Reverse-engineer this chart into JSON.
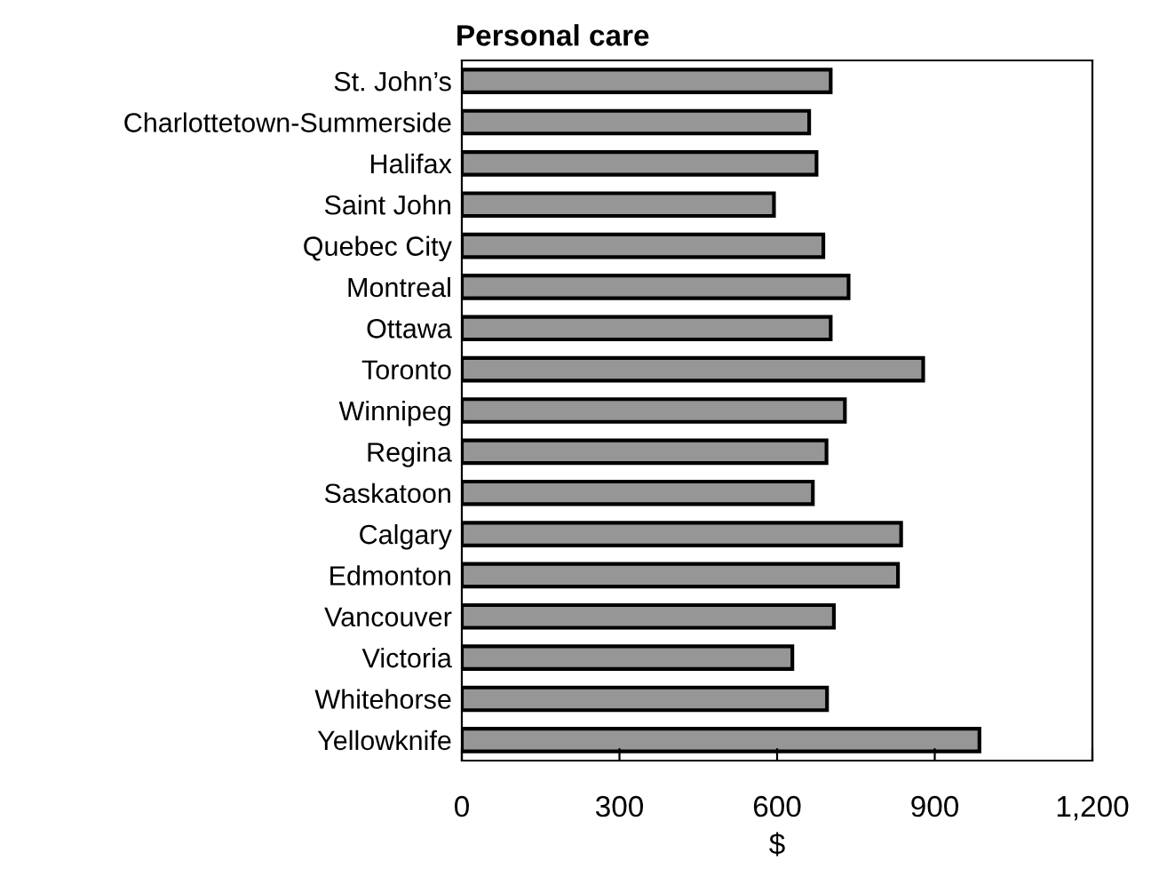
{
  "chart_data": {
    "type": "bar",
    "orientation": "horizontal",
    "title": "Personal care",
    "xlabel": "$",
    "categories": [
      "St. John’s",
      "Charlottetown-Summerside",
      "Halifax",
      "Saint John",
      "Quebec City",
      "Montreal",
      "Ottawa",
      "Toronto",
      "Winnipeg",
      "Regina",
      "Saskatoon",
      "Calgary",
      "Edmonton",
      "Vancouver",
      "Victoria",
      "Whitehorse",
      "Yellowknife"
    ],
    "values": [
      702,
      661,
      675,
      594,
      688,
      736,
      702,
      878,
      729,
      694,
      668,
      836,
      830,
      708,
      629,
      695,
      985
    ],
    "color": "#969696",
    "xlim": [
      0,
      1200
    ],
    "xticks": [
      0,
      300,
      600,
      900,
      {
        "value": 1200,
        "label": "1,200"
      }
    ],
    "grid": false,
    "legend": false
  }
}
